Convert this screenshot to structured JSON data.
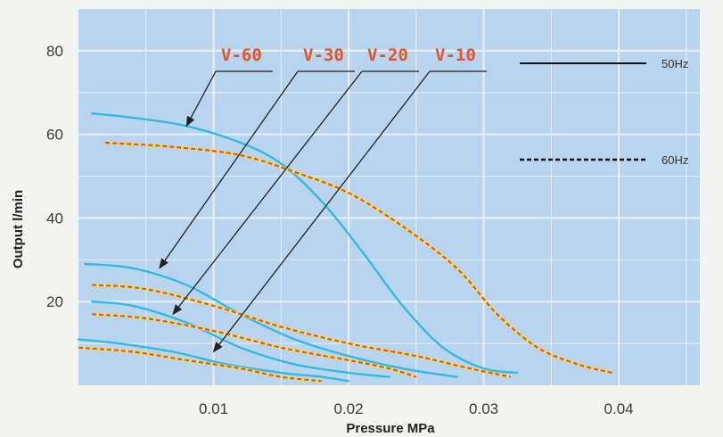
{
  "chart_data": {
    "type": "line",
    "xlabel": "Pressure MPa",
    "ylabel": "Output l/min",
    "xlim": [
      0.0,
      0.046
    ],
    "ylim": [
      0,
      90
    ],
    "x_ticks": [
      "0.01",
      "0.02",
      "0.03",
      "0.04"
    ],
    "x_tick_values": [
      0.01,
      0.02,
      0.03,
      0.04
    ],
    "y_ticks": [
      "20",
      "40",
      "60",
      "80"
    ],
    "y_tick_values": [
      20,
      40,
      60,
      80
    ],
    "grid": true,
    "legend": [
      {
        "label": "50Hz",
        "style": "solid",
        "color": "#111111"
      },
      {
        "label": "60Hz",
        "style": "dashed",
        "color": "#111111"
      }
    ],
    "legend_position": "top-right",
    "colors": {
      "plot_background": "#b8d4ee",
      "grid": "#e6eff8",
      "line_50hz": "#35b9e0",
      "line_60hz": "#e0552a",
      "line_60hz_glow": "#f4e84a",
      "model_labels": "#e0552a",
      "arrows": "#222222"
    },
    "series": [
      {
        "name": "V-60 50Hz",
        "model": "V-60",
        "freq": "50Hz",
        "x": [
          0.001,
          0.004,
          0.008,
          0.012,
          0.015,
          0.018,
          0.021,
          0.024,
          0.027,
          0.03,
          0.0325
        ],
        "y": [
          65,
          64,
          62,
          58,
          53,
          44,
          32,
          19,
          9,
          4,
          3
        ]
      },
      {
        "name": "V-60 60Hz",
        "model": "V-60",
        "freq": "60Hz",
        "x": [
          0.002,
          0.007,
          0.012,
          0.016,
          0.02,
          0.024,
          0.028,
          0.031,
          0.034,
          0.037,
          0.0395
        ],
        "y": [
          58,
          57,
          55,
          51,
          46,
          38,
          28,
          17,
          9,
          5,
          3
        ]
      },
      {
        "name": "V-30 50Hz",
        "model": "V-30",
        "freq": "50Hz",
        "x": [
          0.0005,
          0.004,
          0.008,
          0.012,
          0.016,
          0.02,
          0.024,
          0.028
        ],
        "y": [
          29,
          28,
          24,
          17,
          11,
          7,
          4,
          2
        ]
      },
      {
        "name": "V-30 60Hz",
        "model": "V-30",
        "freq": "60Hz",
        "x": [
          0.001,
          0.005,
          0.01,
          0.015,
          0.02,
          0.025,
          0.029,
          0.032
        ],
        "y": [
          24,
          23,
          19,
          14,
          10,
          7,
          4,
          2
        ]
      },
      {
        "name": "V-20 50Hz",
        "model": "V-20",
        "freq": "50Hz",
        "x": [
          0.001,
          0.004,
          0.008,
          0.012,
          0.016,
          0.02,
          0.023
        ],
        "y": [
          20,
          19,
          15,
          9,
          5,
          3,
          2
        ]
      },
      {
        "name": "V-20 60Hz",
        "model": "V-20",
        "freq": "60Hz",
        "x": [
          0.001,
          0.005,
          0.01,
          0.015,
          0.02,
          0.023,
          0.025
        ],
        "y": [
          17,
          16,
          13,
          9,
          6,
          4,
          2
        ]
      },
      {
        "name": "V-10 50Hz",
        "model": "V-10",
        "freq": "50Hz",
        "x": [
          0.0,
          0.003,
          0.007,
          0.011,
          0.015,
          0.018,
          0.02
        ],
        "y": [
          11,
          10,
          8,
          5,
          3,
          2,
          1
        ]
      },
      {
        "name": "V-10 60Hz",
        "model": "V-10",
        "freq": "60Hz",
        "x": [
          0.0,
          0.004,
          0.008,
          0.012,
          0.015,
          0.018
        ],
        "y": [
          9,
          8,
          6,
          4,
          2,
          1
        ]
      }
    ],
    "annotations": [
      {
        "label": "V-60",
        "target": [
          0.008,
          62
        ]
      },
      {
        "label": "V-30",
        "target": [
          0.006,
          28
        ]
      },
      {
        "label": "V-20",
        "target": [
          0.007,
          17
        ]
      },
      {
        "label": "V-10",
        "target": [
          0.01,
          8
        ]
      }
    ]
  }
}
